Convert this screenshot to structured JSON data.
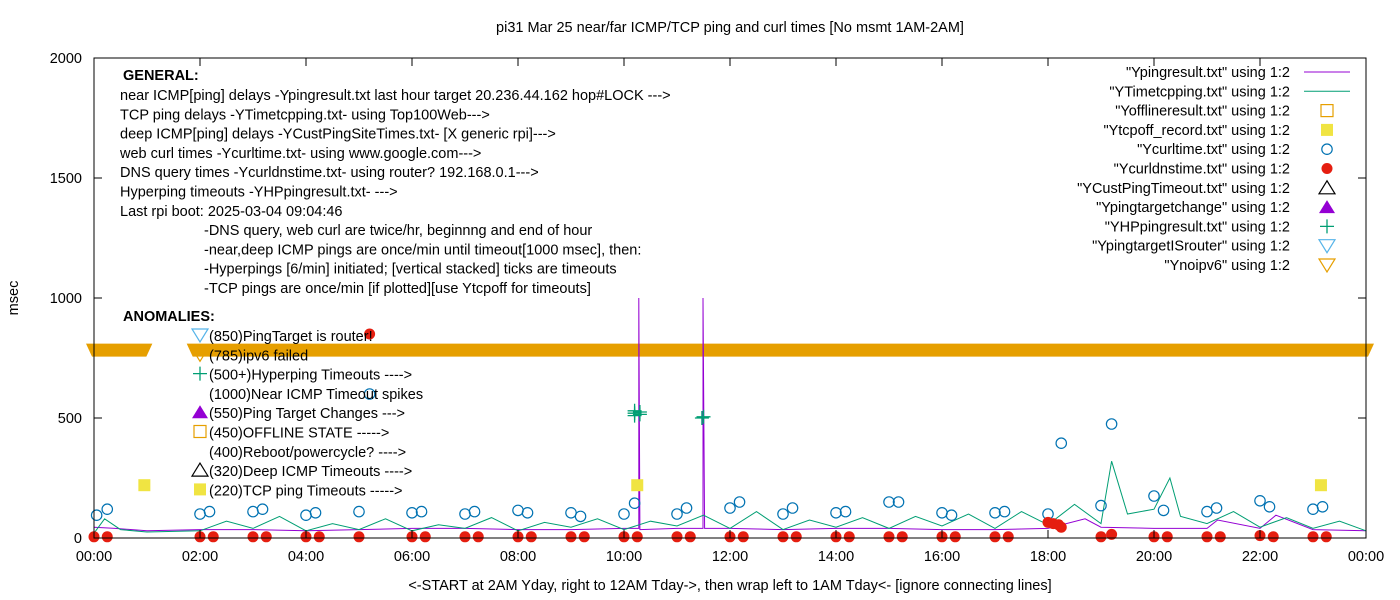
{
  "chart_data": {
    "type": "line",
    "title": "pi31 Mar 25  near/far ICMP/TCP ping and curl times [No msmt 1AM-2AM]",
    "xlabel": "<-START at 2AM Yday, right to 12AM Tday->, then wrap left to 1AM Tday<- [ignore connecting lines]",
    "ylabel": "msec",
    "xlim": [
      0,
      24
    ],
    "ylim": [
      0,
      2000
    ],
    "x_ticks": [
      "00:00",
      "02:00",
      "04:00",
      "06:00",
      "08:00",
      "10:00",
      "12:00",
      "14:00",
      "16:00",
      "18:00",
      "20:00",
      "22:00",
      "00:00"
    ],
    "y_ticks": [
      "0",
      "500",
      "1000",
      "1500",
      "2000"
    ],
    "grid": false,
    "legend_position": "top-right",
    "legend": [
      {
        "label": "\"Ypingresult.txt\" using 1:2",
        "symbol": "line",
        "color": "#9400d3"
      },
      {
        "label": "\"YTimetcpping.txt\" using 1:2",
        "symbol": "line",
        "color": "#009e73"
      },
      {
        "label": "\"Yofflineresult.txt\" using 1:2",
        "symbol": "open-square",
        "color": "#e69f00"
      },
      {
        "label": "\"Ytcpoff_record.txt\" using 1:2",
        "symbol": "filled-square",
        "color": "#f0e442"
      },
      {
        "label": "\"Ycurltime.txt\" using 1:2",
        "symbol": "open-circle",
        "color": "#0072b2"
      },
      {
        "label": "\"Ycurldnstime.txt\" using 1:2",
        "symbol": "filled-circle",
        "color": "#e51e10"
      },
      {
        "label": "\"YCustPingTimeout.txt\" using 1:2",
        "symbol": "open-triangle",
        "color": "#000000"
      },
      {
        "label": "\"Ypingtargetchange\" using 1:2",
        "symbol": "filled-triangle",
        "color": "#9400d3"
      },
      {
        "label": "\"YHPpingresult.txt\" using 1:2",
        "symbol": "plus",
        "color": "#009e73"
      },
      {
        "label": "\"YpingtargetISrouter\" using 1:2",
        "symbol": "open-triangle-down",
        "color": "#56b4e9"
      },
      {
        "label": "\"Ynoipv6\" using 1:2",
        "symbol": "open-triangle-down",
        "color": "#e69f00"
      }
    ],
    "annotations": {
      "general_title": "GENERAL:",
      "general_lines": [
        "near ICMP[ping] delays -Ypingresult.txt last hour target 20.236.44.162 hop#LOCK --->",
        "TCP ping delays -YTimetcpping.txt- using Top100Web--->",
        "deep ICMP[ping] delays -YCustPingSiteTimes.txt- [X generic rpi]--->",
        "web curl times -Ycurltime.txt- using www.google.com--->",
        "DNS query times -Ycurldnstime.txt- using router? 192.168.0.1--->",
        "Hyperping timeouts -YHPpingresult.txt- --->",
        "Last rpi boot: 2025-03-04 09:04:46"
      ],
      "notes": [
        "-DNS query, web curl are twice/hr, beginnng and end of hour",
        "-near,deep ICMP pings are once/min until timeout[1000 msec], then:",
        "  -Hyperpings [6/min] initiated; [vertical stacked] ticks are timeouts",
        "-TCP pings are once/min [if plotted][use Ytcpoff for timeouts]"
      ],
      "anomalies_title": "ANOMALIES:",
      "anomalies": [
        {
          "text": "(850)PingTarget is router!",
          "symbol": "open-triangle-down",
          "color": "#56b4e9"
        },
        {
          "text": "(785)ipv6 failed",
          "symbol": "open-triangle-down",
          "color": "#e69f00"
        },
        {
          "text": "(500+)Hyperping Timeouts ---->",
          "symbol": "plus",
          "color": "#009e73"
        },
        {
          "text": "(1000)Near ICMP Timeout spikes",
          "symbol": "none",
          "color": "#000000"
        },
        {
          "text": "(550)Ping Target Changes --->",
          "symbol": "filled-triangle",
          "color": "#9400d3"
        },
        {
          "text": "(450)OFFLINE STATE ----->",
          "symbol": "open-square",
          "color": "#e69f00"
        },
        {
          "text": "(400)Reboot/powercycle? ---->",
          "symbol": "none",
          "color": "#000000"
        },
        {
          "text": "(320)Deep ICMP Timeouts ---->",
          "symbol": "open-triangle",
          "color": "#000000"
        },
        {
          "text": "(220)TCP ping Timeouts ----->",
          "symbol": "filled-square",
          "color": "#f0e442"
        }
      ]
    },
    "series": [
      {
        "name": "\"Ycurltime.txt\" using 1:2",
        "marker": "open-circle",
        "color": "#0072b2",
        "x": [
          0.05,
          0.25,
          2.0,
          2.18,
          3.0,
          3.18,
          4.0,
          4.18,
          5.0,
          5.2,
          6.0,
          6.18,
          7.0,
          7.18,
          8.0,
          8.18,
          9.0,
          9.18,
          10.0,
          10.2,
          11.0,
          11.18,
          12.0,
          12.18,
          13.0,
          13.18,
          14.0,
          14.18,
          15.0,
          15.18,
          16.0,
          16.18,
          17.0,
          17.18,
          18.0,
          18.25,
          19.0,
          19.2,
          20.0,
          20.18,
          21.0,
          21.18,
          22.0,
          22.18,
          23.0,
          23.18
        ],
        "y": [
          95,
          120,
          100,
          110,
          110,
          120,
          95,
          105,
          110,
          600,
          105,
          110,
          100,
          110,
          115,
          105,
          105,
          90,
          100,
          145,
          100,
          125,
          125,
          150,
          100,
          125,
          105,
          110,
          150,
          150,
          105,
          95,
          105,
          110,
          100,
          395,
          135,
          475,
          175,
          115,
          110,
          125,
          155,
          130,
          120,
          130
        ]
      },
      {
        "name": "\"Ycurldnstime.txt\" using 1:2",
        "marker": "filled-circle",
        "color": "#e51e10",
        "x": [
          0.0,
          0.25,
          2.0,
          2.25,
          3.0,
          3.25,
          4.0,
          4.25,
          5.0,
          5.2,
          6.0,
          6.25,
          7.0,
          7.25,
          8.0,
          8.25,
          9.0,
          9.25,
          10.0,
          10.25,
          11.0,
          11.25,
          12.0,
          12.25,
          13.0,
          13.25,
          14.0,
          14.25,
          15.0,
          15.25,
          16.0,
          16.25,
          17.0,
          17.25,
          18.0,
          18.1,
          18.2,
          18.25,
          19.0,
          19.2,
          20.0,
          20.25,
          21.0,
          21.25,
          22.0,
          22.25,
          23.0,
          23.25
        ],
        "y": [
          5,
          5,
          5,
          5,
          5,
          5,
          5,
          5,
          5,
          850,
          5,
          5,
          5,
          5,
          5,
          5,
          5,
          5,
          5,
          5,
          5,
          5,
          5,
          5,
          5,
          5,
          5,
          5,
          5,
          5,
          5,
          5,
          5,
          5,
          65,
          60,
          55,
          45,
          5,
          15,
          5,
          5,
          5,
          5,
          10,
          5,
          5,
          5
        ]
      },
      {
        "name": "\"Ytcpoff_record.txt\" using 1:2",
        "marker": "filled-square",
        "color": "#f0e442",
        "x": [
          0.95,
          10.25,
          23.15
        ],
        "y": [
          220,
          220,
          220
        ]
      },
      {
        "name": "\"Ynoipv6\" using 1:2",
        "marker": "open-triangle-down",
        "color": "#e69f00",
        "note": "dense band of markers across the whole day",
        "x": [
          0.0,
          0.95,
          1.9,
          24.0
        ],
        "y": [
          785,
          785,
          785,
          785
        ]
      },
      {
        "name": "\"YHPpingresult.txt\" using 1:2",
        "marker": "plus",
        "color": "#009e73",
        "x": [
          10.2,
          10.2,
          10.2,
          10.3,
          10.3,
          11.47,
          11.5
        ],
        "y": [
          510,
          520,
          530,
          515,
          525,
          500,
          505
        ]
      },
      {
        "name": "\"Ypingresult.txt\" using 1:2",
        "line": true,
        "color": "#9400d3",
        "x": [
          0.0,
          0.4,
          1.0,
          2.0,
          3.0,
          4.0,
          5.0,
          6.0,
          7.0,
          8.0,
          9.0,
          10.0,
          10.28,
          10.28,
          10.3,
          11.0,
          11.49,
          11.49,
          11.52,
          12.0,
          13.0,
          14.0,
          15.0,
          16.0,
          17.0,
          18.0,
          18.7,
          19.0,
          20.0,
          21.0,
          21.2,
          22.0,
          22.3,
          23.0,
          24.0
        ],
        "y": [
          45,
          40,
          30,
          35,
          35,
          30,
          35,
          40,
          40,
          35,
          35,
          40,
          40,
          1000,
          35,
          40,
          40,
          1000,
          40,
          40,
          35,
          40,
          40,
          35,
          35,
          40,
          80,
          45,
          40,
          40,
          75,
          40,
          95,
          35,
          30
        ]
      },
      {
        "name": "\"YTimetcpping.txt\" using 1:2",
        "line": true,
        "color": "#009e73",
        "note": "noisy trace, sampled",
        "x": [
          0.0,
          0.2,
          0.5,
          1.0,
          2.0,
          2.5,
          3.0,
          3.5,
          4.0,
          4.5,
          5.0,
          5.5,
          6.0,
          6.5,
          7.0,
          7.5,
          8.0,
          8.5,
          9.0,
          9.5,
          10.0,
          10.5,
          11.0,
          11.5,
          12.0,
          12.5,
          13.0,
          13.5,
          14.0,
          14.5,
          15.0,
          15.5,
          16.0,
          16.5,
          17.0,
          17.5,
          18.0,
          18.5,
          19.0,
          19.2,
          19.5,
          20.0,
          20.3,
          20.5,
          21.0,
          21.5,
          22.0,
          22.5,
          23.0,
          23.5,
          24.0
        ],
        "y": [
          20,
          80,
          35,
          25,
          30,
          70,
          40,
          90,
          30,
          60,
          35,
          80,
          30,
          55,
          40,
          85,
          30,
          65,
          45,
          80,
          35,
          70,
          50,
          95,
          40,
          110,
          35,
          75,
          45,
          85,
          40,
          90,
          50,
          100,
          40,
          110,
          55,
          140,
          60,
          320,
          100,
          120,
          250,
          90,
          60,
          110,
          45,
          85,
          40,
          70,
          30
        ]
      }
    ]
  }
}
